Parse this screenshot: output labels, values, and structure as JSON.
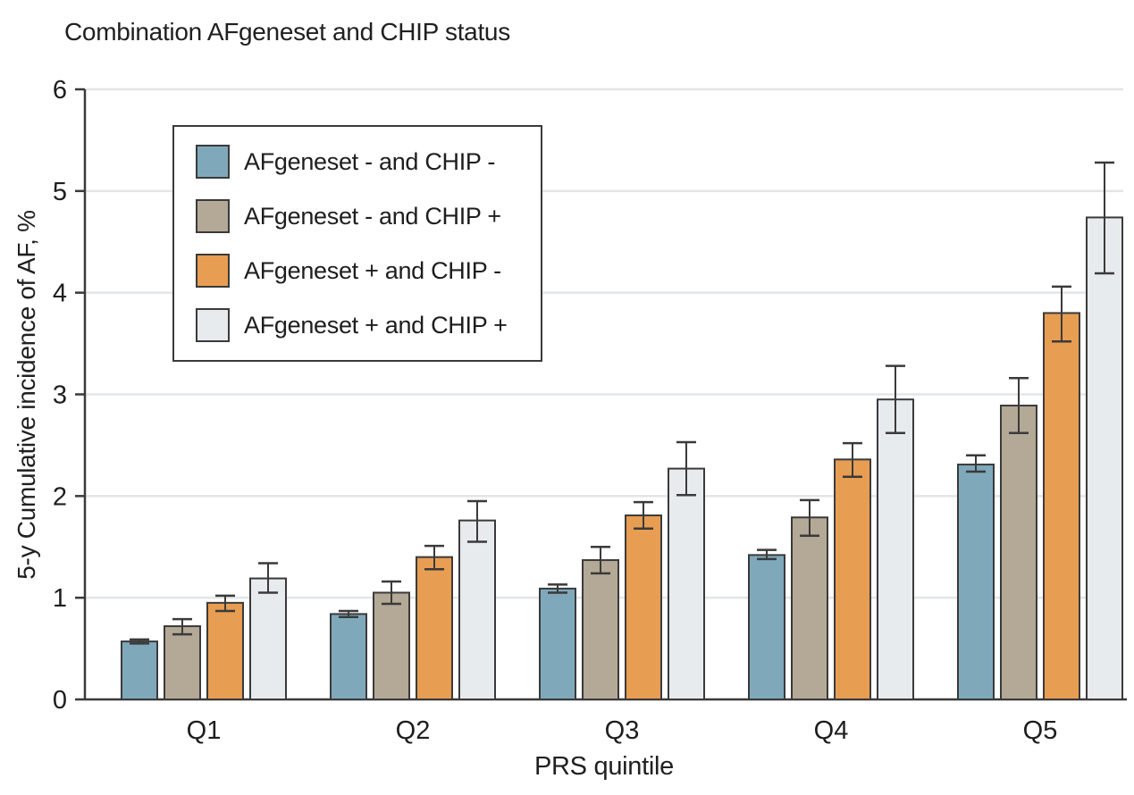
{
  "title": "Combination AFgeneset and CHIP status",
  "colors": {
    "series_blue": "#7FA9BB",
    "series_tan": "#B3A996",
    "series_orange": "#E79D52",
    "series_light": "#E7EBEE",
    "bar_outline": "#3A3A3A",
    "axis": "#3A3A3A",
    "gridline": "#E3E5E7",
    "text": "#1E1E1E",
    "legend_border": "#3A3A3A",
    "background": "#FFFFFF"
  },
  "chart_data": {
    "type": "bar",
    "title": "Combination AFgeneset and CHIP status",
    "xlabel": "PRS quintile",
    "ylabel": "5-y Cumulative incidence of AF, %",
    "categories": [
      "Q1",
      "Q2",
      "Q3",
      "Q4",
      "Q5"
    ],
    "ylim": [
      0,
      6
    ],
    "yticks": [
      0,
      1,
      2,
      3,
      4,
      5,
      6
    ],
    "grid": true,
    "error_bars": true,
    "legend_position": "upper-left",
    "series": [
      {
        "name": "AFgeneset - and CHIP -",
        "color": "#7FA9BB",
        "values": [
          0.57,
          0.84,
          1.09,
          1.42,
          2.31
        ],
        "ci_low": [
          0.55,
          0.81,
          1.05,
          1.38,
          2.24
        ],
        "ci_high": [
          0.59,
          0.87,
          1.13,
          1.47,
          2.4
        ]
      },
      {
        "name": "AFgeneset - and CHIP +",
        "color": "#B3A996",
        "values": [
          0.72,
          1.05,
          1.37,
          1.79,
          2.89
        ],
        "ci_low": [
          0.64,
          0.94,
          1.24,
          1.61,
          2.62
        ],
        "ci_high": [
          0.79,
          1.16,
          1.5,
          1.96,
          3.16
        ]
      },
      {
        "name": "AFgeneset + and CHIP -",
        "color": "#E79D52",
        "values": [
          0.95,
          1.4,
          1.81,
          2.36,
          3.8
        ],
        "ci_low": [
          0.87,
          1.28,
          1.68,
          2.19,
          3.52
        ],
        "ci_high": [
          1.02,
          1.51,
          1.94,
          2.52,
          4.06
        ]
      },
      {
        "name": "AFgeneset + and CHIP +",
        "color": "#E7EBEE",
        "values": [
          1.19,
          1.76,
          2.27,
          2.95,
          4.74
        ],
        "ci_low": [
          1.05,
          1.55,
          2.01,
          2.62,
          4.19
        ],
        "ci_high": [
          1.34,
          1.95,
          2.53,
          3.28,
          5.28
        ]
      }
    ]
  }
}
